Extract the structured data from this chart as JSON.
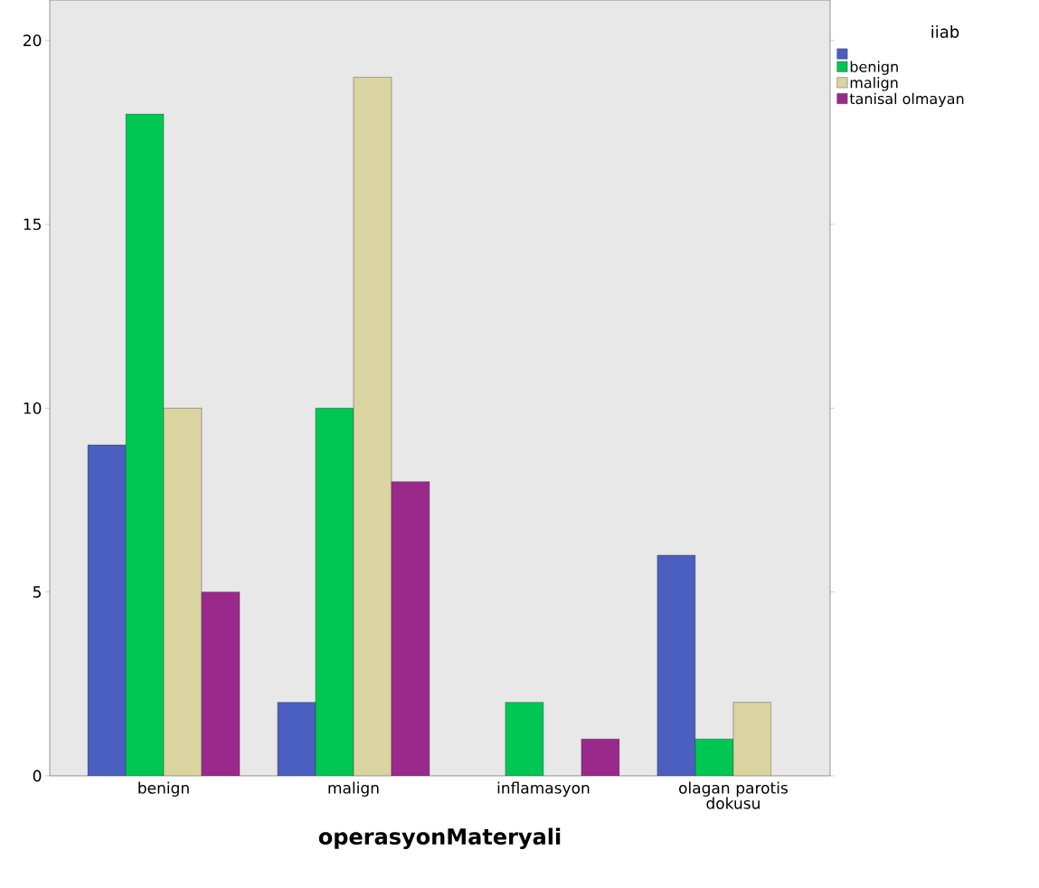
{
  "chart_data": {
    "type": "bar",
    "xlabel": "operasyonMateryali",
    "legend_title": "iiab",
    "categories": [
      "benign",
      "malign",
      "inflamasyon",
      "olagan parotis dokusu"
    ],
    "series": [
      {
        "name": null,
        "color": "#4a5fbf",
        "values": [
          9,
          2,
          null,
          6
        ]
      },
      {
        "name": "benign",
        "color": "#00c752",
        "values": [
          18,
          10,
          2,
          1
        ]
      },
      {
        "name": "malign",
        "color": "#d9d4a0",
        "values": [
          10,
          19,
          null,
          2
        ]
      },
      {
        "name": "tanisal olmayan",
        "color": "#992a8c",
        "values": [
          5,
          8,
          1,
          null
        ]
      }
    ],
    "ylim": [
      0,
      21.1
    ],
    "yticks": [
      0,
      5,
      10,
      15,
      20
    ],
    "grid": false,
    "legend": "top right"
  }
}
